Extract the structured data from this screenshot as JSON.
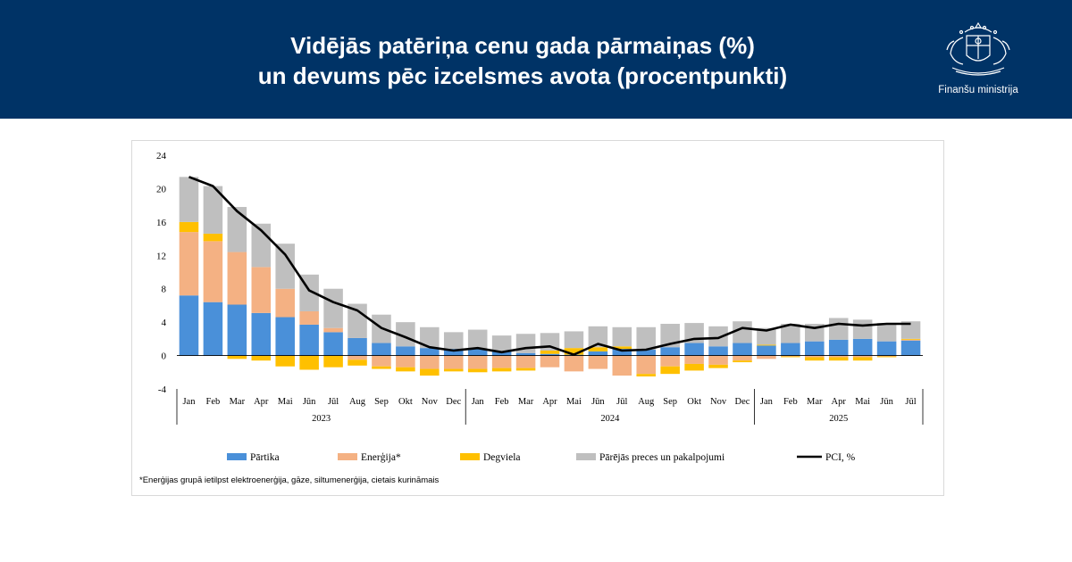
{
  "header": {
    "title_line1": "Vidējās patēriņa cenu gada pārmaiņas (%)",
    "title_line2": "un devums pēc izcelsmes avota (procentpunkti)",
    "logo_text": "Finanšu ministrija",
    "background_color": "#003366"
  },
  "footnote": "*Enerģijas grupā ietilpst elektroenerģija, gāze, siltumenerģija, cietais kurināmais",
  "chart_data": {
    "type": "bar",
    "stacked": true,
    "categories": [
      "Jan",
      "Feb",
      "Mar",
      "Apr",
      "Mai",
      "Jūn",
      "Jūl",
      "Aug",
      "Sep",
      "Okt",
      "Nov",
      "Dec",
      "Jan",
      "Feb",
      "Mar",
      "Apr",
      "Mai",
      "Jūn",
      "Jūl",
      "Aug",
      "Sep",
      "Okt",
      "Nov",
      "Dec",
      "Jan",
      "Feb",
      "Mar",
      "Apr",
      "Mai",
      "Jūn",
      "Jūl"
    ],
    "year_groups": [
      {
        "label": "2023",
        "count": 12
      },
      {
        "label": "2024",
        "count": 12
      },
      {
        "label": "2025",
        "count": 7
      }
    ],
    "ylim": [
      -4,
      24
    ],
    "yticks": [
      -4,
      0,
      4,
      8,
      12,
      16,
      20,
      24
    ],
    "grid": false,
    "legend_position": "bottom",
    "series": [
      {
        "name": "Pārtika",
        "color": "#4a90d9",
        "values": [
          7.2,
          6.4,
          6.1,
          5.1,
          4.6,
          3.7,
          2.8,
          2.1,
          1.5,
          1.1,
          0.9,
          0.8,
          0.8,
          0.5,
          0.3,
          0.2,
          0.1,
          0.5,
          0.8,
          0.7,
          1.0,
          1.5,
          1.1,
          1.5,
          1.2,
          1.5,
          1.7,
          1.9,
          2.0,
          1.7,
          1.8
        ]
      },
      {
        "name": "Enerģija*",
        "color": "#f4b183",
        "values": [
          7.6,
          7.3,
          6.3,
          5.5,
          3.4,
          1.6,
          0.5,
          -0.5,
          -1.3,
          -1.4,
          -1.6,
          -1.6,
          -1.6,
          -1.5,
          -1.5,
          -1.4,
          -1.9,
          -1.6,
          -2.4,
          -2.2,
          -1.3,
          -1.0,
          -1.1,
          -0.6,
          -0.4,
          -0.1,
          -0.2,
          -0.2,
          -0.2,
          -0.1,
          0.1
        ]
      },
      {
        "name": "Degviela",
        "color": "#ffc000",
        "values": [
          1.2,
          0.9,
          -0.4,
          -0.6,
          -1.3,
          -1.7,
          -1.4,
          -0.7,
          -0.3,
          -0.5,
          -0.8,
          -0.3,
          -0.4,
          -0.4,
          -0.3,
          0.4,
          0.8,
          0.5,
          0.3,
          -0.3,
          -0.9,
          -0.8,
          -0.4,
          -0.2,
          0.1,
          -0.1,
          -0.4,
          -0.4,
          -0.4,
          -0.1,
          0.1
        ]
      },
      {
        "name": "Pārējās preces un pakalpojumi",
        "color": "#bfbfbf",
        "values": [
          5.4,
          5.7,
          5.4,
          5.2,
          5.4,
          4.4,
          4.7,
          4.1,
          3.4,
          2.9,
          2.5,
          2.0,
          2.3,
          1.9,
          2.3,
          2.1,
          2.0,
          2.5,
          2.3,
          2.7,
          2.8,
          2.4,
          2.4,
          2.6,
          2.0,
          2.3,
          2.1,
          2.6,
          2.3,
          2.2,
          2.1
        ]
      },
      {
        "name": "PCI, %",
        "color": "#000000",
        "type": "line",
        "values": [
          21.4,
          20.3,
          17.3,
          15.0,
          12.1,
          7.8,
          6.4,
          5.4,
          3.3,
          2.2,
          1.0,
          0.6,
          0.9,
          0.4,
          0.9,
          1.1,
          0.1,
          1.4,
          0.6,
          0.7,
          1.4,
          2.0,
          2.1,
          3.3,
          3.0,
          3.7,
          3.3,
          3.8,
          3.6,
          3.8,
          3.8
        ]
      }
    ]
  }
}
